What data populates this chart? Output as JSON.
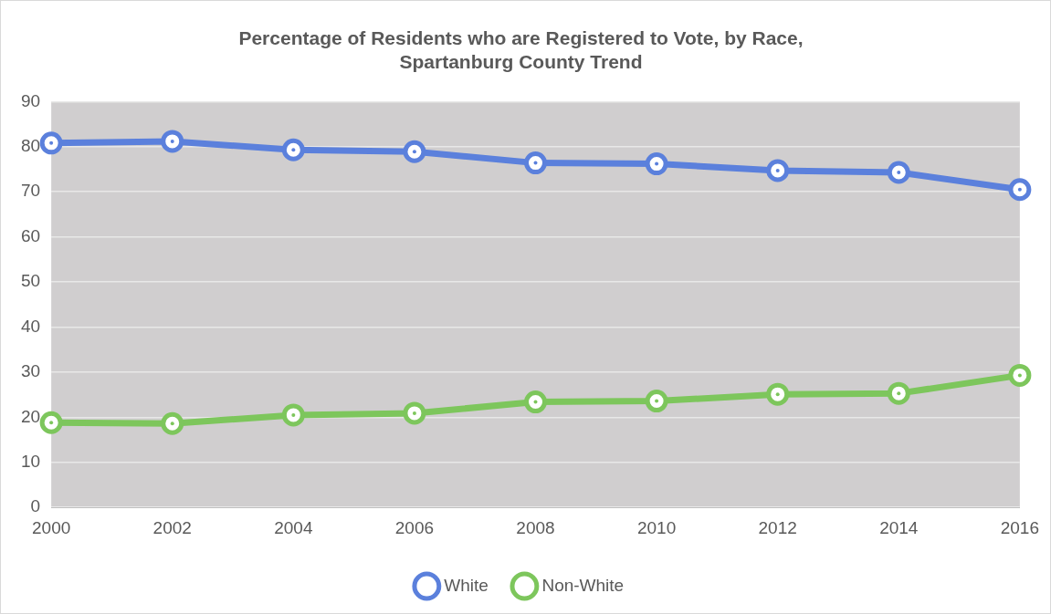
{
  "chart_data": {
    "type": "line",
    "title": [
      "Percentage of Residents who are Registered to Vote, by Race,",
      "Spartanburg County Trend"
    ],
    "categories": [
      "2000",
      "2002",
      "2004",
      "2006",
      "2008",
      "2010",
      "2012",
      "2014",
      "2016"
    ],
    "series": [
      {
        "name": "White",
        "color": "#5b80dc",
        "values": [
          80.8,
          81.2,
          79.3,
          78.9,
          76.4,
          76.2,
          74.7,
          74.3,
          70.5
        ]
      },
      {
        "name": "Non-White",
        "color": "#7dc65c",
        "values": [
          18.8,
          18.6,
          20.5,
          20.9,
          23.4,
          23.6,
          25.1,
          25.3,
          29.3
        ]
      }
    ],
    "ylim": [
      0,
      90
    ],
    "yticks": [
      0,
      10,
      20,
      30,
      40,
      50,
      60,
      70,
      80,
      90
    ],
    "grid": "y",
    "legend": "bottom",
    "marker": "circle",
    "line_style": "solid"
  }
}
